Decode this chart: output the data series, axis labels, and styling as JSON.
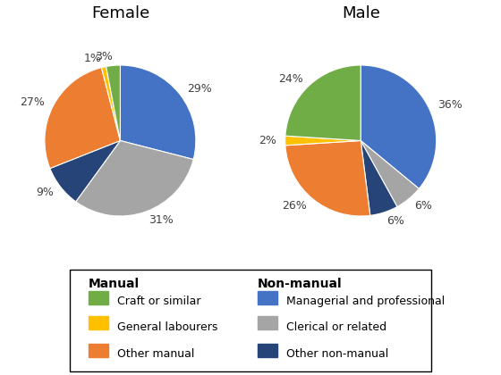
{
  "female": {
    "title": "Female",
    "values": [
      29,
      31,
      9,
      27,
      1,
      3
    ],
    "labels": [
      "29%",
      "31%",
      "9%",
      "27%",
      "1%",
      "3%"
    ],
    "colors": [
      "#4472C4",
      "#A5A5A5",
      "#264478",
      "#ED7D31",
      "#FFC000",
      "#70AD47"
    ],
    "startangle": 90,
    "counterclock": false
  },
  "male": {
    "title": "Male",
    "values": [
      36,
      6,
      6,
      26,
      2,
      24
    ],
    "labels": [
      "36%",
      "6%",
      "6%",
      "26%",
      "2%",
      "24%"
    ],
    "colors": [
      "#4472C4",
      "#A5A5A5",
      "#264478",
      "#ED7D31",
      "#FFC000",
      "#70AD47"
    ],
    "startangle": 90,
    "counterclock": false
  },
  "legend": {
    "manual_title": "Manual",
    "nonmanual_title": "Non-manual",
    "manual_items": [
      {
        "label": "Craft or similar",
        "color": "#70AD47"
      },
      {
        "label": "General labourers",
        "color": "#FFC000"
      },
      {
        "label": "Other manual",
        "color": "#ED7D31"
      }
    ],
    "nonmanual_items": [
      {
        "label": "Managerial and professional",
        "color": "#4472C4"
      },
      {
        "label": "Clerical or related",
        "color": "#A5A5A5"
      },
      {
        "label": "Other non-manual",
        "color": "#264478"
      }
    ]
  },
  "bg_color": "#FFFFFF",
  "title_fontsize": 13,
  "label_fontsize": 9,
  "legend_fontsize": 9
}
